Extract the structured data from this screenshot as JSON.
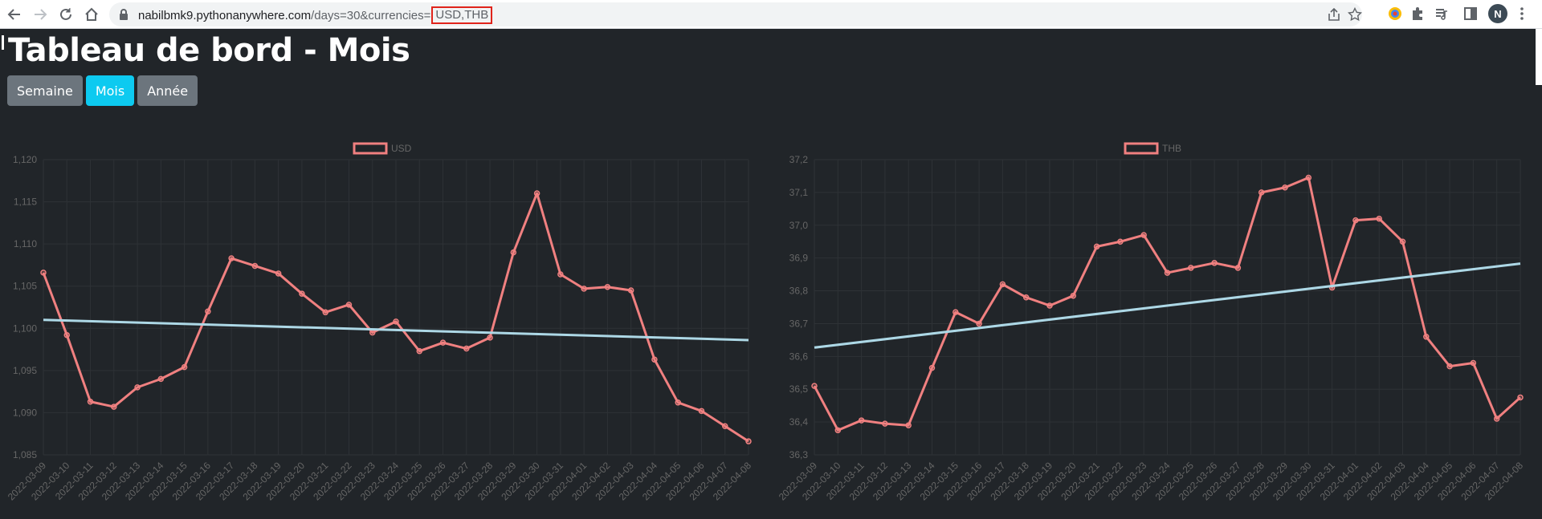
{
  "browser": {
    "url_host": "nabilbmk9.pythonanywhere.com",
    "url_path": "/days=30&currencies=",
    "url_highlight": "USD,THB",
    "profile_initial": "N"
  },
  "page": {
    "title": "Tableau de bord - Mois",
    "buttons": [
      {
        "label": "Semaine",
        "active": false
      },
      {
        "label": "Mois",
        "active": true
      },
      {
        "label": "Année",
        "active": false
      }
    ]
  },
  "colors": {
    "series": "#f08080",
    "trend": "#add8e6",
    "active_button": "#0dcaf0",
    "button": "#6c757d",
    "background": "#212529"
  },
  "chart_data": [
    {
      "type": "line",
      "legend": "USD",
      "legend_position": "top",
      "ylim": [
        1.085,
        1.12
      ],
      "yticks": [
        "1,085",
        "1,090",
        "1,095",
        "1,100",
        "1,105",
        "1,110",
        "1,115",
        "1,120"
      ],
      "x": [
        "2022-03-09",
        "2022-03-10",
        "2022-03-11",
        "2022-03-12",
        "2022-03-13",
        "2022-03-14",
        "2022-03-15",
        "2022-03-16",
        "2022-03-17",
        "2022-03-18",
        "2022-03-19",
        "2022-03-20",
        "2022-03-21",
        "2022-03-22",
        "2022-03-23",
        "2022-03-24",
        "2022-03-25",
        "2022-03-26",
        "2022-03-27",
        "2022-03-28",
        "2022-03-29",
        "2022-03-30",
        "2022-03-31",
        "2022-04-01",
        "2022-04-02",
        "2022-04-03",
        "2022-04-04",
        "2022-04-05",
        "2022-04-06",
        "2022-04-07",
        "2022-04-08"
      ],
      "values": [
        1.1066,
        1.0992,
        1.0913,
        1.0907,
        1.093,
        1.094,
        1.0954,
        1.102,
        1.1083,
        1.1074,
        1.1065,
        1.1041,
        1.1019,
        1.1028,
        1.0995,
        1.1008,
        1.0973,
        1.0983,
        1.0976,
        1.0989,
        1.109,
        1.116,
        1.1064,
        1.1047,
        1.1049,
        1.1045,
        1.0963,
        1.0912,
        1.0902,
        1.0884,
        1.0866
      ],
      "trend": [
        1.101,
        1.0986
      ],
      "grid": true
    },
    {
      "type": "line",
      "legend": "THB",
      "legend_position": "top",
      "ylim": [
        36.3,
        37.2
      ],
      "yticks": [
        "36,3",
        "36,4",
        "36,5",
        "36,6",
        "36,7",
        "36,8",
        "36,9",
        "37,0",
        "37,1",
        "37,2"
      ],
      "x": [
        "2022-03-09",
        "2022-03-10",
        "2022-03-11",
        "2022-03-12",
        "2022-03-13",
        "2022-03-14",
        "2022-03-15",
        "2022-03-16",
        "2022-03-17",
        "2022-03-18",
        "2022-03-19",
        "2022-03-20",
        "2022-03-21",
        "2022-03-22",
        "2022-03-23",
        "2022-03-24",
        "2022-03-25",
        "2022-03-26",
        "2022-03-27",
        "2022-03-28",
        "2022-03-29",
        "2022-03-30",
        "2022-03-31",
        "2022-04-01",
        "2022-04-02",
        "2022-04-03",
        "2022-04-04",
        "2022-04-05",
        "2022-04-06",
        "2022-04-07",
        "2022-04-08"
      ],
      "values": [
        36.51,
        36.375,
        36.405,
        36.395,
        36.39,
        36.565,
        36.735,
        36.7,
        36.82,
        36.78,
        36.755,
        36.785,
        36.935,
        36.95,
        36.97,
        36.855,
        36.87,
        36.885,
        36.87,
        37.1,
        37.115,
        37.145,
        36.81,
        37.015,
        37.02,
        36.95,
        36.66,
        36.57,
        36.58,
        36.41,
        36.475
      ],
      "trend": [
        36.627,
        36.883
      ],
      "grid": true
    }
  ]
}
